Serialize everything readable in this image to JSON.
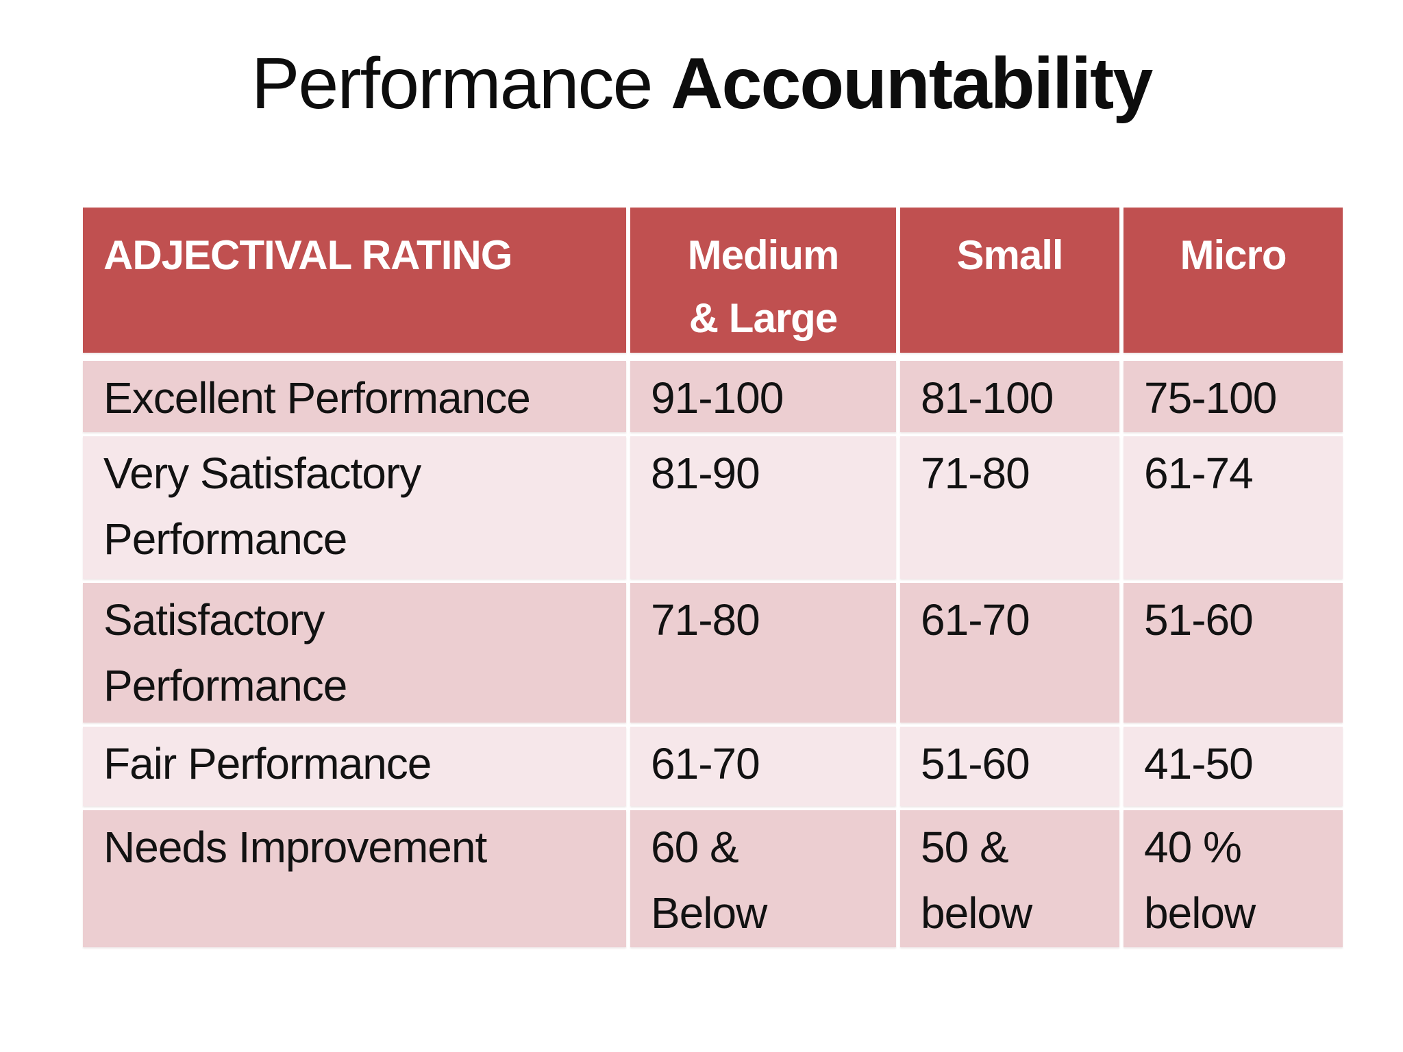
{
  "title": {
    "regular": "Performance ",
    "bold": "Accountability"
  },
  "table": {
    "header": {
      "rating": "ADJECTIVAL RATING",
      "medium_large": "Medium\n& Large",
      "small": "Small",
      "micro": "Micro"
    },
    "rows": [
      {
        "rating": "Excellent Performance",
        "medium_large": "91-100",
        "small": "81-100",
        "micro": "75-100"
      },
      {
        "rating": "Very Satisfactory\nPerformance",
        "medium_large": "81-90",
        "small": "71-80",
        "micro": "61-74"
      },
      {
        "rating": "Satisfactory\nPerformance",
        "medium_large": "71-80",
        "small": "61-70",
        "micro": "51-60"
      },
      {
        "rating": "Fair Performance",
        "medium_large": "61-70",
        "small": "51-60",
        "micro": "41-50"
      },
      {
        "rating": "Needs Improvement",
        "medium_large": "60 &\nBelow",
        "small": "50 &\nbelow",
        "micro": "40 %\nbelow"
      }
    ],
    "colors": {
      "header_bg": "#c05050",
      "header_text": "#ffffff",
      "band_dark": "#ecced1",
      "band_light": "#f6e7ea",
      "body_text": "#121212",
      "divider": "#ffffff"
    }
  }
}
